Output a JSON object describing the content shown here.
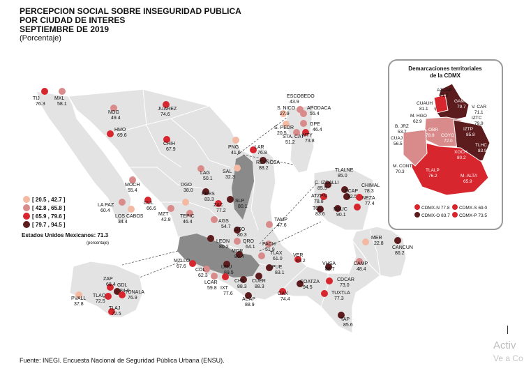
{
  "title": {
    "lines": [
      "PERCEPCION SOCIAL SOBRE INSEGURIDAD PUBLICA",
      "POR CIUDAD DE INTERES",
      "SEPTIEMBRE DE 2019"
    ],
    "unit": "(Porcentaje)"
  },
  "legend": {
    "items": [
      {
        "label": "[ 20.5 , 42.7 ]",
        "color": "#f4b9a3"
      },
      {
        "label": "[ 42.8 , 65.8 ]",
        "color": "#d98b8b"
      },
      {
        "label": "[ 65.9 , 79.6 ]",
        "color": "#d7262e"
      },
      {
        "label": "[ 79.7 , 94.5 ]",
        "color": "#5c1b1d"
      }
    ]
  },
  "national": {
    "label": "Estados Unidos Mexicanos:",
    "value": "71.3",
    "unit": "(porcentaje)"
  },
  "cities": [
    {
      "name": "TIJ",
      "value": "76.3"
    },
    {
      "name": "MXL",
      "value": "58.1"
    },
    {
      "name": "NOG",
      "value": "49.4"
    },
    {
      "name": "JUAREZ",
      "value": "74.6"
    },
    {
      "name": "HMO",
      "value": "69.6"
    },
    {
      "name": "CHIH",
      "value": "67.9"
    },
    {
      "name": "ESCOBEDO",
      "value": "43.9"
    },
    {
      "name": "S. NICO",
      "value": "27.9"
    },
    {
      "name": "APODACA",
      "value": "55.4"
    },
    {
      "name": "S. PEDR",
      "value": "20.5"
    },
    {
      "name": "GPE",
      "value": "46.4"
    },
    {
      "name": "MTY",
      "value": "73.8"
    },
    {
      "name": "STA. CAT",
      "value": "51.2"
    },
    {
      "name": "PNG",
      "value": "41.6"
    },
    {
      "name": "LAR",
      "value": "76.8"
    },
    {
      "name": "REYNOSA",
      "value": "88.2"
    },
    {
      "name": "SAL",
      "value": "32.3"
    },
    {
      "name": "LAG",
      "value": "50.1"
    },
    {
      "name": "MOCH",
      "value": "55.4"
    },
    {
      "name": "DGO",
      "value": "38.0"
    },
    {
      "name": "CUL",
      "value": "66.6"
    },
    {
      "name": "FRES",
      "value": "83.3"
    },
    {
      "name": "LA PAZ",
      "value": "60.4"
    },
    {
      "name": "LOS CABOS",
      "value": "34.4"
    },
    {
      "name": "MZT",
      "value": "42.8"
    },
    {
      "name": "ZAC",
      "value": "77.2"
    },
    {
      "name": "TEPIC",
      "value": "46.4"
    },
    {
      "name": "AGS",
      "value": "54.7"
    },
    {
      "name": "SLP",
      "value": "80.1"
    },
    {
      "name": "TAMP",
      "value": "47.6"
    },
    {
      "name": "GTO",
      "value": "80.3"
    },
    {
      "name": "LEON",
      "value": "80.2"
    },
    {
      "name": "QRO",
      "value": "64.1"
    },
    {
      "name": "MOR",
      "value": "80.4"
    },
    {
      "name": "PACH",
      "value": "51.9"
    },
    {
      "name": "TLAX",
      "value": "61.0"
    },
    {
      "name": "MZLLO",
      "value": "67.6"
    },
    {
      "name": "COL",
      "value": "62.3"
    },
    {
      "name": "URU",
      "value": "89.5"
    },
    {
      "name": "LCAR",
      "value": "59.8"
    },
    {
      "name": "IXT",
      "value": "77.6"
    },
    {
      "name": "CHIL",
      "value": "88.3"
    },
    {
      "name": "CUER",
      "value": "88.3"
    },
    {
      "name": "PUE",
      "value": "83.1"
    },
    {
      "name": "VER",
      "value": "69.2"
    },
    {
      "name": "ACAP",
      "value": "88.9"
    },
    {
      "name": "OAX",
      "value": "74.4"
    },
    {
      "name": "COATZA",
      "value": "94.5"
    },
    {
      "name": "VHSA",
      "value": "88.7"
    },
    {
      "name": "CDCAR",
      "value": "73.0"
    },
    {
      "name": "TUXTLA",
      "value": "77.3"
    },
    {
      "name": "TAP",
      "value": "85.6"
    },
    {
      "name": "CAMP",
      "value": "48.4"
    },
    {
      "name": "MER",
      "value": "22.8"
    },
    {
      "name": "CANCUN",
      "value": "86.2"
    },
    {
      "name": "TLALNE",
      "value": "85.0"
    },
    {
      "name": "C. IZCALLI",
      "value": "85.5"
    },
    {
      "name": "ATZPN",
      "value": "78.8"
    },
    {
      "name": "ECAP",
      "value": "92.5"
    },
    {
      "name": "CHIMAL",
      "value": "78.3"
    },
    {
      "name": "NEZA",
      "value": "77.4"
    },
    {
      "name": "TOL",
      "value": "83.6"
    },
    {
      "name": "NAUC",
      "value": "90.1"
    },
    {
      "name": "ZAP",
      "value": "68.4"
    },
    {
      "name": "GDL",
      "value": "84.0"
    },
    {
      "name": "TONALA",
      "value": "76.9"
    },
    {
      "name": "TLAQ",
      "value": "72.5"
    },
    {
      "name": "PVALL",
      "value": "37.8"
    },
    {
      "name": "TLAJ",
      "value": "72.5"
    }
  ],
  "cdmx": {
    "title": [
      "Demarcaciones territoriales",
      "de la CDMX"
    ],
    "districts": [
      {
        "name": "AZCAP",
        "value": "71.7"
      },
      {
        "name": "GAM",
        "value": "79.7"
      },
      {
        "name": "CUAUH",
        "value": "81.1"
      },
      {
        "name": "V. CAR",
        "value": "71.1"
      },
      {
        "name": "M. HGO",
        "value": "62.9"
      },
      {
        "name": "IZTC",
        "value": "79.9"
      },
      {
        "name": "B. JRZ",
        "value": "53.7"
      },
      {
        "name": "IZTP",
        "value": "85.8"
      },
      {
        "name": "A. OBR",
        "value": "78.9"
      },
      {
        "name": "COYO",
        "value": "72.0"
      },
      {
        "name": "CUAJ",
        "value": "56.5"
      },
      {
        "name": "TLHC",
        "value": "83.9"
      },
      {
        "name": "XOCH",
        "value": "80.2"
      },
      {
        "name": "M. CONT",
        "value": "70.3"
      },
      {
        "name": "TLALP",
        "value": "76.2"
      },
      {
        "name": "M. ALTA",
        "value": "65.9"
      }
    ],
    "zones": [
      {
        "name": "CDMX-N",
        "value": "77.8"
      },
      {
        "name": "CDMX-S",
        "value": "69.0"
      },
      {
        "name": "CDMX-O",
        "value": "83.7"
      },
      {
        "name": "CDMX-P",
        "value": "73.5"
      }
    ]
  },
  "source": "Fuente: INEGI. Encuesta Nacional de Seguridad Pública Urbana (ENSU).",
  "watermark": {
    "line1": "Activ",
    "line2": "Ve a Co"
  },
  "colors": {
    "land": "#e3e3e3",
    "border": "#ffffff",
    "highlight": "#8a8a8a",
    "edomex_blue": "#9fb6d8"
  }
}
